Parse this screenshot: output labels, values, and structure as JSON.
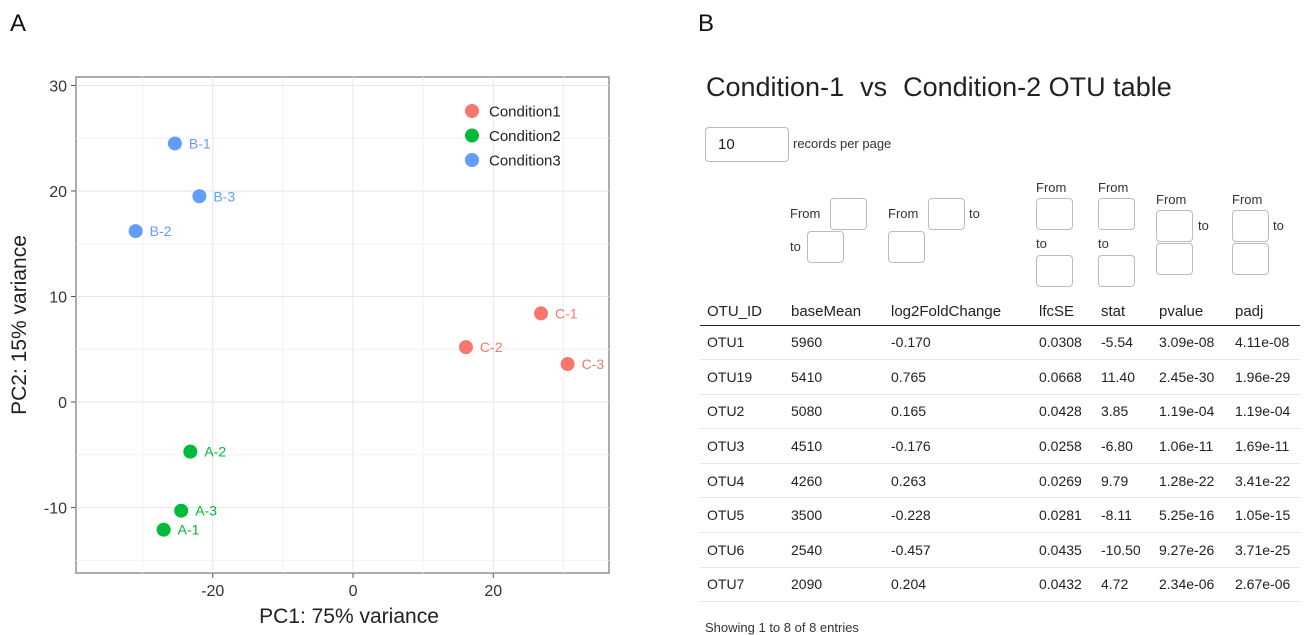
{
  "panel_a_letter": "A",
  "panel_b_letter": "B",
  "chart_data": {
    "type": "scatter",
    "xlabel": "PC1: 75% variance",
    "ylabel": "PC2: 15% variance",
    "xlim": [
      -39.5,
      36.5
    ],
    "ylim": [
      -16.2,
      30.8
    ],
    "xticks": [
      -20,
      0,
      20
    ],
    "yticks": [
      -10,
      0,
      10,
      20,
      30
    ],
    "grid": true,
    "legend_position": "top-right",
    "series": [
      {
        "name": "Condition1",
        "color": "#F8766D",
        "points": [
          {
            "label": "C-1",
            "x": 26.8,
            "y": 8.4
          },
          {
            "label": "C-2",
            "x": 16.1,
            "y": 5.2
          },
          {
            "label": "C-3",
            "x": 30.6,
            "y": 3.6
          }
        ]
      },
      {
        "name": "Condition2",
        "color": "#00BA38",
        "points": [
          {
            "label": "A-2",
            "x": -23.2,
            "y": -4.7
          },
          {
            "label": "A-3",
            "x": -24.5,
            "y": -10.3
          },
          {
            "label": "A-1",
            "x": -27.0,
            "y": -12.1
          }
        ]
      },
      {
        "name": "Condition3",
        "color": "#619CFF",
        "points": [
          {
            "label": "B-1",
            "x": -25.4,
            "y": 24.5
          },
          {
            "label": "B-3",
            "x": -21.9,
            "y": 19.5
          },
          {
            "label": "B-2",
            "x": -31.0,
            "y": 16.2
          }
        ]
      }
    ]
  },
  "table_panel": {
    "title_part1": "Condition-1",
    "title_part2": "vs",
    "title_part3": "Condition-2 OTU table",
    "records_value": "10",
    "records_label": "records per page",
    "filter_from": "From",
    "filter_to": "to",
    "columns": [
      "OTU_ID",
      "baseMean",
      "log2FoldChange",
      "lfcSE",
      "stat",
      "pvalue",
      "padj"
    ],
    "rows": [
      [
        "OTU1",
        "5960",
        "-0.170",
        "0.0308",
        "-5.54",
        "3.09e-08",
        "4.11e-08"
      ],
      [
        "OTU19",
        "5410",
        "0.765",
        "0.0668",
        "11.40",
        "2.45e-30",
        "1.96e-29"
      ],
      [
        "OTU2",
        "5080",
        "0.165",
        "0.0428",
        "3.85",
        "1.19e-04",
        "1.19e-04"
      ],
      [
        "OTU3",
        "4510",
        "-0.176",
        "0.0258",
        "-6.80",
        "1.06e-11",
        "1.69e-11"
      ],
      [
        "OTU4",
        "4260",
        "0.263",
        "0.0269",
        "9.79",
        "1.28e-22",
        "3.41e-22"
      ],
      [
        "OTU5",
        "3500",
        "-0.228",
        "0.0281",
        "-8.11",
        "5.25e-16",
        "1.05e-15"
      ],
      [
        "OTU6",
        "2540",
        "-0.457",
        "0.0435",
        "-10.50",
        "9.27e-26",
        "3.71e-25"
      ],
      [
        "OTU7",
        "2090",
        "0.204",
        "0.0432",
        "4.72",
        "2.34e-06",
        "2.67e-06"
      ]
    ],
    "info": "Showing 1 to 8 of 8 entries"
  }
}
